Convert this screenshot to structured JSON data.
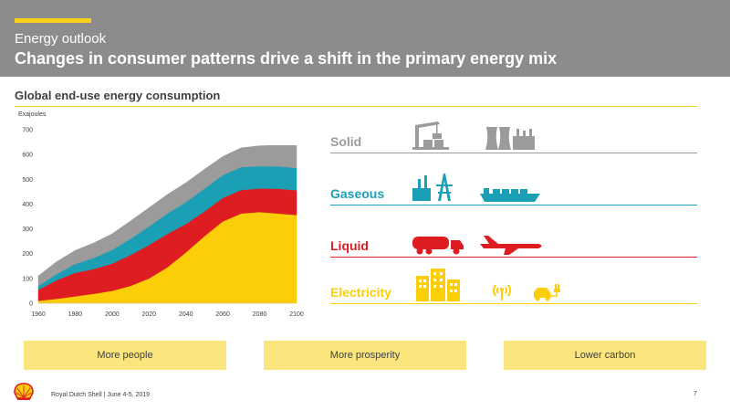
{
  "header": {
    "kicker": "Energy outlook",
    "title": "Changes in consumer patterns drive a shift in the primary energy mix"
  },
  "colors": {
    "header_gray": "#8c8c8c",
    "shell_yellow": "#f7d117",
    "solid_gray": "#9b9b9b",
    "gaseous_teal": "#1a9fb4",
    "liquid_red": "#dd1d21",
    "electricity_yellow": "#fbce07",
    "box_yellow": "#fbe57d"
  },
  "chart_data": {
    "type": "area",
    "stacked": true,
    "title": "Global end-use energy consumption",
    "ylabel": "Exajoules",
    "xlabel": "",
    "xlim": [
      1960,
      2100
    ],
    "ylim": [
      0,
      700
    ],
    "x_ticks": [
      1960,
      1980,
      2000,
      2020,
      2040,
      2060,
      2080,
      2100
    ],
    "y_ticks": [
      0,
      100,
      200,
      300,
      400,
      500,
      600,
      700
    ],
    "grid": false,
    "legend": "category labels on the right",
    "x": [
      1960,
      1970,
      1980,
      1990,
      2000,
      2010,
      2020,
      2030,
      2040,
      2050,
      2060,
      2070,
      2080,
      2090,
      2100
    ],
    "series": [
      {
        "name": "Electricity",
        "color": "#fbce07",
        "values": [
          10,
          18,
          28,
          38,
          50,
          70,
          100,
          145,
          205,
          270,
          330,
          362,
          368,
          362,
          356
        ]
      },
      {
        "name": "Liquid",
        "color": "#dd1d21",
        "values": [
          45,
          75,
          95,
          100,
          110,
          125,
          135,
          135,
          115,
          100,
          95,
          95,
          95,
          100,
          100
        ]
      },
      {
        "name": "Gaseous",
        "color": "#1a9fb4",
        "values": [
          15,
          25,
          35,
          45,
          55,
          65,
          75,
          82,
          88,
          92,
          92,
          92,
          90,
          90,
          90
        ]
      },
      {
        "name": "Solid",
        "color": "#9b9b9b",
        "values": [
          40,
          50,
          55,
          60,
          65,
          72,
          75,
          77,
          78,
          78,
          75,
          78,
          82,
          85,
          90
        ]
      }
    ]
  },
  "categories": [
    {
      "label": "Solid",
      "color": "#9b9b9b"
    },
    {
      "label": "Gaseous",
      "color": "#1a9fb4"
    },
    {
      "label": "Liquid",
      "color": "#dd1d21"
    },
    {
      "label": "Electricity",
      "color": "#fbce07"
    }
  ],
  "themes": [
    "More people",
    "More prosperity",
    "Lower carbon"
  ],
  "footer": {
    "text": "Royal Dutch Shell | June 4-5, 2019",
    "page": "7"
  }
}
